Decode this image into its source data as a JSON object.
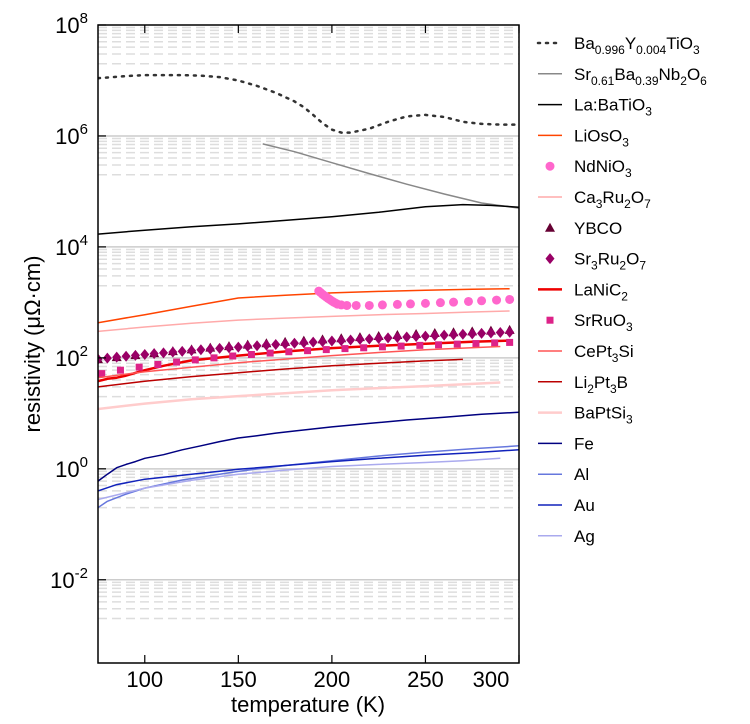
{
  "chart_data": {
    "type": "line",
    "xlabel": "temperature (K)",
    "ylabel_main": "resistivity (",
    "ylabel_unit": "μΩ·cm",
    "ylabel_close": ")",
    "yscale": "log",
    "xlim": [
      75,
      300
    ],
    "ylim_exp": [
      -3.5,
      8
    ],
    "x_ticks": [
      100,
      150,
      200,
      250,
      300
    ],
    "y_ticks": [
      {
        "base": "10",
        "exp": "8",
        "value": 8
      },
      {
        "base": "10",
        "exp": "6",
        "value": 6
      },
      {
        "base": "10",
        "exp": "4",
        "value": 4
      },
      {
        "base": "10",
        "exp": "2",
        "value": 2
      },
      {
        "base": "10",
        "exp": "0",
        "value": 0
      },
      {
        "base": "10",
        "exp": "-2",
        "value": -2
      }
    ],
    "series": [
      {
        "name": "Ba0.996Y0.004TiO3",
        "label": [
          {
            "t": "Ba"
          },
          {
            "t": "0.996",
            "s": "sub"
          },
          {
            "t": "Y"
          },
          {
            "t": "0.004",
            "s": "sub"
          },
          {
            "t": "TiO"
          },
          {
            "t": "3",
            "s": "sub"
          }
        ],
        "color": "#333333",
        "style": "dotted",
        "x": [
          75,
          90,
          100,
          110,
          120,
          130,
          140,
          150,
          160,
          170,
          180,
          185,
          190,
          195,
          200,
          205,
          210,
          220,
          230,
          240,
          250,
          260,
          270,
          280,
          290,
          300
        ],
        "y": [
          11000000.0,
          12000000.0,
          12500000.0,
          12500000.0,
          12500000.0,
          12200000.0,
          11500000.0,
          10000000.0,
          8000000.0,
          6000000.0,
          4200000.0,
          3300000.0,
          2400000.0,
          1700000.0,
          1300000.0,
          1150000.0,
          1150000.0,
          1350000.0,
          1800000.0,
          2250000.0,
          2400000.0,
          2200000.0,
          1800000.0,
          1650000.0,
          1600000.0,
          1600000.0
        ]
      },
      {
        "name": "Sr0.61Ba0.39Nb2O6",
        "label": [
          {
            "t": "Sr"
          },
          {
            "t": "0.61",
            "s": "sub"
          },
          {
            "t": "Ba"
          },
          {
            "t": "0.39",
            "s": "sub"
          },
          {
            "t": "Nb"
          },
          {
            "t": "2",
            "s": "sub"
          },
          {
            "t": "O"
          },
          {
            "t": "6",
            "s": "sub"
          }
        ],
        "color": "#888888",
        "style": "solid",
        "width": 1.5,
        "x": [
          163,
          180,
          200,
          220,
          240,
          260,
          280,
          300
        ],
        "y": [
          720000.0,
          520000.0,
          330000.0,
          210000.0,
          135000.0,
          90000.0,
          62000.0,
          50000.0
        ]
      },
      {
        "name": "La:BaTiO3",
        "label": [
          {
            "t": "La:BaTiO"
          },
          {
            "t": "3",
            "s": "sub"
          }
        ],
        "color": "#000000",
        "style": "solid",
        "width": 1.5,
        "x": [
          75,
          100,
          125,
          150,
          175,
          200,
          225,
          250,
          270,
          285,
          300
        ],
        "y": [
          17000.0,
          20000.0,
          23000.0,
          26000.0,
          30000.0,
          35000.0,
          42000.0,
          53000.0,
          58000.0,
          56000.0,
          52000.0
        ]
      },
      {
        "name": "LiOsO3",
        "label": [
          {
            "t": "LiOsO"
          },
          {
            "t": "3",
            "s": "sub"
          }
        ],
        "color": "#ff4400",
        "style": "solid",
        "width": 1.5,
        "x": [
          75,
          100,
          125,
          150,
          175,
          200,
          225,
          250,
          275,
          295
        ],
        "y": [
          430,
          600,
          850,
          1200,
          1350,
          1480,
          1580,
          1650,
          1720,
          1760
        ]
      },
      {
        "name": "NdNiO3",
        "label": [
          {
            "t": "NdNiO"
          },
          {
            "t": "3",
            "s": "sub"
          }
        ],
        "color": "#ff66cc",
        "style": "markers",
        "marker": "circle",
        "x": [
          193,
          194,
          195,
          196,
          197,
          198,
          199,
          200,
          201,
          202,
          203,
          205,
          208,
          213,
          220,
          227,
          235,
          242,
          250,
          258,
          265,
          273,
          280,
          288,
          295
        ],
        "y": [
          1600,
          1500,
          1400,
          1320,
          1250,
          1180,
          1120,
          1060,
          1010,
          970,
          930,
          900,
          880,
          880,
          880,
          900,
          920,
          940,
          960,
          990,
          1010,
          1040,
          1070,
          1100,
          1130
        ]
      },
      {
        "name": "Ca3Ru2O7",
        "label": [
          {
            "t": "Ca"
          },
          {
            "t": "3",
            "s": "sub"
          },
          {
            "t": "Ru"
          },
          {
            "t": "2",
            "s": "sub"
          },
          {
            "t": "O"
          },
          {
            "t": "7",
            "s": "sub"
          }
        ],
        "color": "#ffaaaa",
        "style": "solid",
        "width": 1.5,
        "x": [
          75,
          100,
          125,
          150,
          175,
          200,
          225,
          250,
          275,
          295
        ],
        "y": [
          300,
          360,
          420,
          480,
          520,
          560,
          600,
          630,
          670,
          700
        ]
      },
      {
        "name": "YBCO",
        "label": [
          {
            "t": "YBCO"
          }
        ],
        "color": "#660033",
        "style": "markers",
        "marker": "triangle",
        "x": [
          75,
          85,
          95,
          105,
          115,
          125,
          135,
          145,
          155,
          165,
          175,
          185,
          195,
          205,
          215,
          225,
          235,
          245,
          255,
          265,
          275,
          285,
          295
        ],
        "y": [
          95,
          103,
          112,
          122,
          132,
          142,
          153,
          163,
          173,
          183,
          194,
          205,
          215,
          226,
          237,
          248,
          258,
          269,
          280,
          290,
          300,
          310,
          320
        ]
      },
      {
        "name": "Sr3Ru2O7",
        "label": [
          {
            "t": "Sr"
          },
          {
            "t": "3",
            "s": "sub"
          },
          {
            "t": "Ru"
          },
          {
            "t": "2",
            "s": "sub"
          },
          {
            "t": "O"
          },
          {
            "t": "7",
            "s": "sub"
          }
        ],
        "color": "#990066",
        "style": "markers",
        "marker": "diamond",
        "x": [
          75,
          80,
          85,
          90,
          95,
          100,
          105,
          110,
          115,
          120,
          125,
          130,
          135,
          140,
          145,
          150,
          155,
          160,
          165,
          170,
          175,
          180,
          185,
          190,
          195,
          200,
          205,
          210,
          215,
          220,
          225,
          230,
          235,
          240,
          245,
          250,
          255,
          260,
          265,
          270,
          275,
          280,
          285,
          290,
          295
        ],
        "y": [
          95,
          99,
          103,
          107,
          111,
          115,
          119,
          123,
          127,
          131,
          135,
          140,
          144,
          148,
          152,
          156,
          161,
          165,
          170,
          174,
          178,
          183,
          187,
          192,
          196,
          201,
          205,
          210,
          215,
          219,
          224,
          229,
          233,
          238,
          243,
          247,
          252,
          257,
          261,
          266,
          271,
          276,
          281,
          286,
          290
        ]
      },
      {
        "name": "LaNiC2",
        "label": [
          {
            "t": "LaNiC"
          },
          {
            "t": "2",
            "s": "sub"
          }
        ],
        "color": "#ee0000",
        "style": "solid",
        "width": 2.5,
        "x": [
          75,
          80,
          85,
          90,
          100,
          110,
          125,
          150,
          175,
          200,
          225,
          250,
          275,
          295
        ],
        "y": [
          38,
          42,
          44,
          48,
          60,
          72,
          90,
          110,
          130,
          150,
          165,
          180,
          195,
          205
        ]
      },
      {
        "name": "SrRuO3",
        "label": [
          {
            "t": "SrRuO"
          },
          {
            "t": "3",
            "s": "sub"
          }
        ],
        "color": "#dd2288",
        "style": "markers",
        "marker": "square",
        "x": [
          77,
          87,
          97,
          107,
          117,
          127,
          137,
          147,
          157,
          167,
          177,
          187,
          197,
          207,
          217,
          227,
          237,
          247,
          257,
          267,
          277,
          287,
          295
        ],
        "y": [
          52,
          60,
          68,
          76,
          84,
          92,
          100,
          108,
          115,
          122,
          129,
          135,
          141,
          147,
          152,
          158,
          163,
          168,
          172,
          177,
          181,
          186,
          190
        ]
      },
      {
        "name": "CePt3Si",
        "label": [
          {
            "t": "CePt"
          },
          {
            "t": "3",
            "s": "sub"
          },
          {
            "t": "Si"
          }
        ],
        "color": "#ff5555",
        "style": "solid",
        "width": 1.5,
        "x": [
          75,
          100,
          125,
          150,
          175,
          200,
          225,
          250,
          270,
          290
        ],
        "y": [
          44,
          56,
          68,
          82,
          95,
          110,
          125,
          140,
          150,
          160
        ]
      },
      {
        "name": "Li2Pt3B",
        "label": [
          {
            "t": "Li"
          },
          {
            "t": "2",
            "s": "sub"
          },
          {
            "t": "Pt"
          },
          {
            "t": "3",
            "s": "sub"
          },
          {
            "t": "B"
          }
        ],
        "color": "#bb0000",
        "style": "solid",
        "width": 1.5,
        "x": [
          75,
          100,
          125,
          150,
          175,
          200,
          225,
          250,
          270
        ],
        "y": [
          30,
          38,
          46,
          54,
          63,
          72,
          80,
          88,
          94
        ]
      },
      {
        "name": "BaPtSi3",
        "label": [
          {
            "t": "BaPtSi"
          },
          {
            "t": "3",
            "s": "sub"
          }
        ],
        "color": "#ffcccc",
        "style": "solid",
        "width": 2.5,
        "x": [
          75,
          100,
          125,
          150,
          175,
          200,
          225,
          250,
          275,
          290
        ],
        "y": [
          12,
          15,
          18,
          20.5,
          23,
          26,
          28.5,
          31,
          34,
          36
        ]
      },
      {
        "name": "Fe",
        "label": [
          {
            "t": "Fe"
          }
        ],
        "color": "#000080",
        "style": "solid",
        "width": 1.5,
        "x": [
          75,
          80,
          85,
          90,
          95,
          100,
          110,
          120,
          130,
          140,
          150,
          160,
          170,
          180,
          200,
          220,
          240,
          260,
          280,
          300
        ],
        "y": [
          0.6,
          0.8,
          1.05,
          1.2,
          1.35,
          1.55,
          1.8,
          2.2,
          2.6,
          3.1,
          3.6,
          3.95,
          4.4,
          4.8,
          5.7,
          6.6,
          7.6,
          8.5,
          9.6,
          10.5
        ]
      },
      {
        "name": "Al",
        "label": [
          {
            "t": "Al"
          }
        ],
        "color": "#6677dd",
        "style": "solid",
        "width": 1.5,
        "x": [
          75,
          80,
          90,
          100,
          120,
          150,
          175,
          200,
          225,
          250,
          275,
          300
        ],
        "y": [
          0.2,
          0.26,
          0.35,
          0.45,
          0.63,
          0.9,
          1.15,
          1.4,
          1.7,
          2.0,
          2.3,
          2.6
        ]
      },
      {
        "name": "Au",
        "label": [
          {
            "t": "Au"
          }
        ],
        "color": "#1122bb",
        "style": "solid",
        "width": 1.5,
        "x": [
          75,
          85,
          100,
          125,
          150,
          175,
          200,
          225,
          250,
          275,
          300
        ],
        "y": [
          0.4,
          0.52,
          0.65,
          0.8,
          0.98,
          1.15,
          1.35,
          1.55,
          1.75,
          1.95,
          2.2
        ]
      },
      {
        "name": "Ag",
        "label": [
          {
            "t": "Ag"
          }
        ],
        "color": "#aaaaee",
        "style": "solid",
        "width": 1.5,
        "x": [
          75,
          100,
          125,
          150,
          175,
          200,
          225,
          250,
          270,
          290
        ],
        "y": [
          0.28,
          0.45,
          0.62,
          0.8,
          0.95,
          1.1,
          1.2,
          1.3,
          1.4,
          1.55
        ]
      }
    ]
  }
}
